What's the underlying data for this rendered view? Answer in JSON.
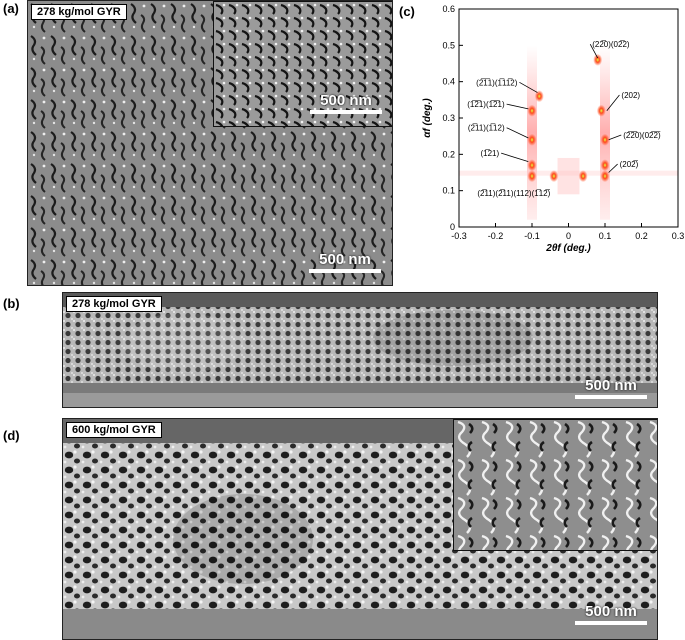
{
  "panels": {
    "a": {
      "label": "(a)",
      "tag": "278 kg/mol GYR",
      "scalebar": "500 nm",
      "inset_scalebar": "500 nm"
    },
    "b": {
      "label": "(b)",
      "tag": "278 kg/mol GYR",
      "scalebar": "500 nm"
    },
    "c": {
      "label": "(c)"
    },
    "d": {
      "label": "(d)",
      "tag": "600 kg/mol GYR",
      "scalebar": "500 nm"
    }
  },
  "chart_data": {
    "type": "scatter",
    "title": "",
    "xlabel": "2θf (deg.)",
    "ylabel": "αf (deg.)",
    "xlim": [
      -0.3,
      0.3
    ],
    "ylim": [
      0,
      0.6
    ],
    "xticks": [
      "-0.3",
      "-0.2",
      "-0.1",
      "0",
      "0.1",
      "0.2",
      "0.3"
    ],
    "yticks": [
      "0",
      "0.1",
      "0.2",
      "0.3",
      "0.4",
      "0.5",
      "0.6"
    ],
    "peaks": [
      {
        "x": -0.1,
        "y": 0.14
      },
      {
        "x": -0.1,
        "y": 0.17
      },
      {
        "x": -0.1,
        "y": 0.24
      },
      {
        "x": -0.1,
        "y": 0.32
      },
      {
        "x": -0.08,
        "y": 0.36
      },
      {
        "x": 0.1,
        "y": 0.14
      },
      {
        "x": 0.1,
        "y": 0.17
      },
      {
        "x": 0.1,
        "y": 0.24
      },
      {
        "x": 0.09,
        "y": 0.32
      },
      {
        "x": 0.08,
        "y": 0.46
      },
      {
        "x": -0.04,
        "y": 0.14
      },
      {
        "x": 0.04,
        "y": 0.14
      }
    ],
    "annotations": [
      {
        "text": "(2̅1̅1)(1̅11̅2)",
        "x": -0.065,
        "y": 0.385
      },
      {
        "text": "(1̅2̅1)(1̅2̅1)",
        "x": -0.1,
        "y": 0.32
      },
      {
        "text": "(2̅11)(1̅12)",
        "x": -0.1,
        "y": 0.265
      },
      {
        "text": "(1̅21)",
        "x": -0.1,
        "y": 0.19
      },
      {
        "text": "(2̅11)(2̅11)(112)(1̅12̅)",
        "x": -0.1,
        "y": 0.14
      },
      {
        "text": "(22̅0)(02̅2)",
        "x": 0.075,
        "y": 0.47
      },
      {
        "text": "(202)",
        "x": 0.09,
        "y": 0.35
      },
      {
        "text": "(2̅2̅0)(02̅2̅)",
        "x": 0.1,
        "y": 0.24
      },
      {
        "text": "(202̅)",
        "x": 0.1,
        "y": 0.16
      }
    ]
  }
}
